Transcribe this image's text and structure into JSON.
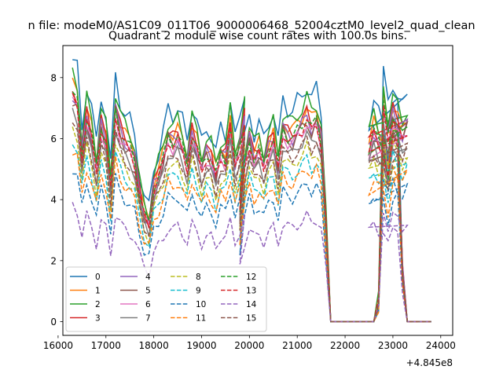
{
  "suptitle": "n file: modeM0/AS1C09_011T06_9000006468_52004cztM0_level2_quad_clean",
  "chart_data": {
    "type": "line",
    "title": "Quadrant 2 module wise count rates with 100.0s bins.",
    "xlabel": "",
    "ylabel": "",
    "offset_text": "+4.845e8",
    "xlim": [
      16100,
      24250
    ],
    "ylim": [
      -0.45,
      9.05
    ],
    "xticks": [
      16000,
      17000,
      18000,
      19000,
      20000,
      21000,
      22000,
      23000,
      24000
    ],
    "yticks": [
      0,
      2,
      4,
      6,
      8
    ],
    "xtick_labels": [
      "16000",
      "17000",
      "18000",
      "19000",
      "20000",
      "21000",
      "22000",
      "23000",
      "24000"
    ],
    "ytick_labels": [
      "0",
      "2",
      "4",
      "6",
      "8"
    ],
    "grid": false,
    "legend": {
      "placement": "lower-left",
      "columns": 4
    },
    "segments": [
      {
        "start": 16300,
        "step": 100,
        "count": 37
      },
      {
        "start": 19800,
        "step": 100,
        "count": 36
      },
      {
        "start": 22500,
        "step": 100,
        "count": 14
      }
    ],
    "profile": [
      8.1,
      7.8,
      6.0,
      7.3,
      6.6,
      5.5,
      7.0,
      6.4,
      4.8,
      7.6,
      6.8,
      6.4,
      6.2,
      5.8,
      4.6,
      3.8,
      3.5,
      4.8,
      5.2,
      5.8,
      6.6,
      6.4,
      6.6,
      6.2,
      5.6,
      6.7,
      6.2,
      5.5,
      6.0,
      5.8,
      5.2,
      6.0,
      5.8,
      6.9,
      5.6,
      6.3,
      7.2,
      3.8,
      5.6,
      6.5,
      5.8,
      6.1,
      5.6,
      6.2,
      6.5,
      5.5,
      6.9,
      6.6,
      6.5,
      6.8,
      7.0,
      7.3,
      6.9,
      7.2,
      6.5,
      3.5,
      0.0,
      0.0,
      0.0,
      0.0,
      0.0,
      0.0,
      0.0,
      0.0,
      0.0,
      0.0,
      0.7,
      7.7,
      6.7,
      7.4,
      7.0,
      6.6,
      7.0,
      6.2,
      6.8,
      6.4,
      6.2,
      5.2,
      6.6,
      6.7,
      1.8
    ],
    "series": [
      {
        "name": "0",
        "color": "#1f77b4",
        "dashed": false,
        "scale": 1.06,
        "amp": 0.1,
        "phase": 0.0
      },
      {
        "name": "1",
        "color": "#ff7f0e",
        "dashed": false,
        "scale": 0.96,
        "amp": 0.08,
        "phase": 1.1
      },
      {
        "name": "2",
        "color": "#2ca02c",
        "dashed": false,
        "scale": 1.0,
        "amp": 0.1,
        "phase": 2.3
      },
      {
        "name": "3",
        "color": "#d62728",
        "dashed": false,
        "scale": 0.94,
        "amp": 0.08,
        "phase": 3.4
      },
      {
        "name": "4",
        "color": "#9467bd",
        "dashed": false,
        "scale": 0.92,
        "amp": 0.08,
        "phase": 4.2
      },
      {
        "name": "5",
        "color": "#8c564b",
        "dashed": false,
        "scale": 0.9,
        "amp": 0.08,
        "phase": 5.1
      },
      {
        "name": "6",
        "color": "#e377c2",
        "dashed": false,
        "scale": 0.89,
        "amp": 0.08,
        "phase": 0.7
      },
      {
        "name": "7",
        "color": "#7f7f7f",
        "dashed": false,
        "scale": 0.84,
        "amp": 0.07,
        "phase": 1.9
      },
      {
        "name": "8",
        "color": "#bcbd22",
        "dashed": true,
        "scale": 0.78,
        "amp": 0.07,
        "phase": 2.8
      },
      {
        "name": "9",
        "color": "#17becf",
        "dashed": true,
        "scale": 0.73,
        "amp": 0.07,
        "phase": 3.7
      },
      {
        "name": "10",
        "color": "#1f77b4",
        "dashed": true,
        "scale": 0.62,
        "amp": 0.06,
        "phase": 4.6
      },
      {
        "name": "11",
        "color": "#ff7f0e",
        "dashed": true,
        "scale": 0.69,
        "amp": 0.06,
        "phase": 5.5
      },
      {
        "name": "12",
        "color": "#2ca02c",
        "dashed": true,
        "scale": 0.92,
        "amp": 0.07,
        "phase": 0.4
      },
      {
        "name": "13",
        "color": "#d62728",
        "dashed": true,
        "scale": 0.9,
        "amp": 0.07,
        "phase": 1.5
      },
      {
        "name": "14",
        "color": "#9467bd",
        "dashed": true,
        "scale": 0.47,
        "amp": 0.07,
        "phase": 2.6
      },
      {
        "name": "15",
        "color": "#8c564b",
        "dashed": true,
        "scale": 0.82,
        "amp": 0.06,
        "phase": 3.9
      }
    ]
  }
}
